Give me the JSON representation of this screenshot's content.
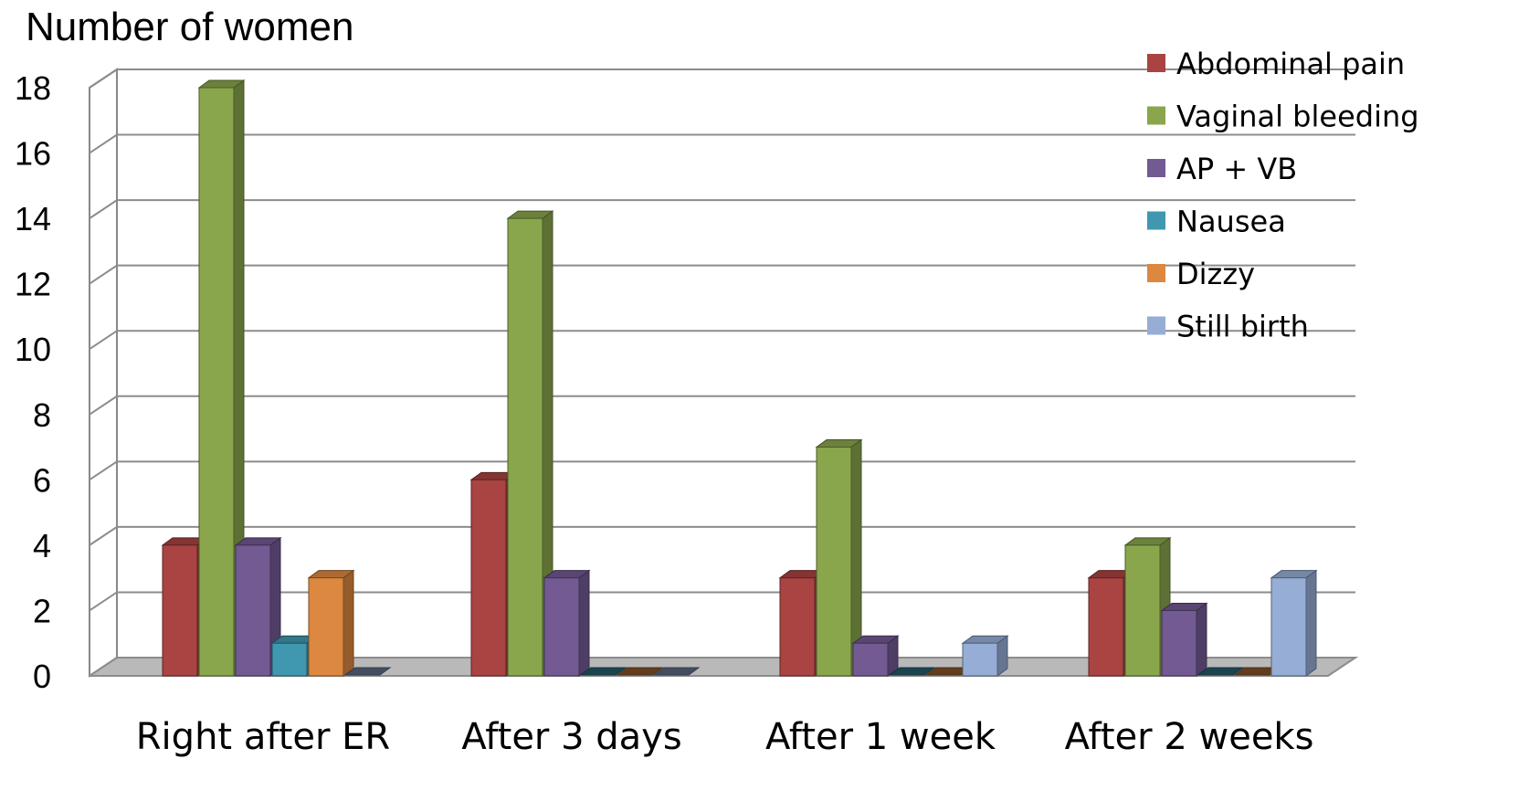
{
  "chart_data": {
    "type": "bar",
    "style": "3d-clustered-column",
    "ylabel": "Number of women",
    "categories": [
      "Right after ER",
      "After 3 days",
      "After 1 week",
      "After 2 weeks"
    ],
    "series": [
      {
        "name": "Abdominal pain",
        "color": "#A94442",
        "values": [
          4,
          6,
          3,
          3
        ]
      },
      {
        "name": "Vaginal bleeding",
        "color": "#8AA64C",
        "values": [
          18,
          14,
          7,
          4
        ]
      },
      {
        "name": "AP + VB",
        "color": "#735A93",
        "values": [
          4,
          3,
          1,
          2
        ]
      },
      {
        "name": "Nausea",
        "color": "#3F98B0",
        "values": [
          1,
          0,
          0,
          0
        ]
      },
      {
        "name": "Dizzy",
        "color": "#DD8840",
        "values": [
          3,
          0,
          0,
          0
        ]
      },
      {
        "name": "Still birth",
        "color": "#96AED6",
        "values": [
          0,
          0,
          1,
          3
        ]
      }
    ],
    "yticks": [
      "0",
      "2",
      "4",
      "6",
      "8",
      "10",
      "12",
      "14",
      "16",
      "18"
    ],
    "ylim": [
      0,
      18
    ],
    "grid": true,
    "legend": "top-right"
  }
}
